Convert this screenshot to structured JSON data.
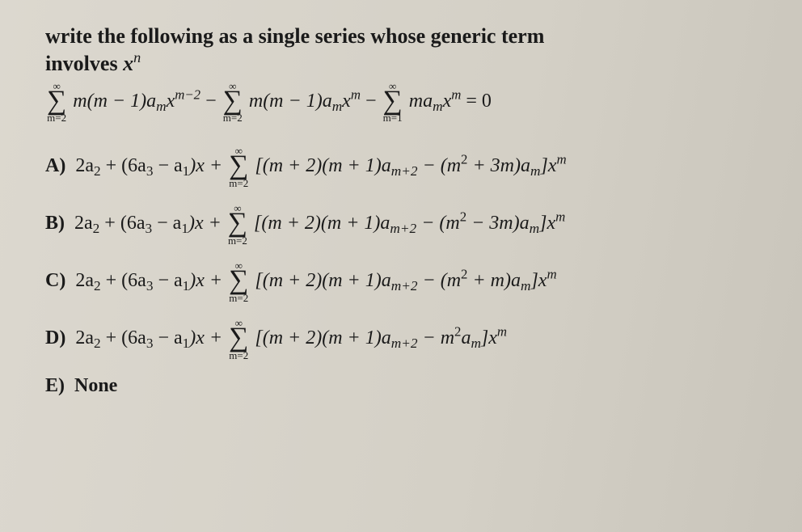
{
  "prompt": {
    "line1_a": "write the following as a single series whose generic term",
    "line2_a": "involves ",
    "line2_var": "x",
    "line2_exp": "n"
  },
  "equation": {
    "sum1": {
      "top": "∞",
      "bot": "m=2"
    },
    "term1a": "m(m − 1)a",
    "term1b": "x",
    "sum2": {
      "top": "∞",
      "bot": "m=2"
    },
    "term2a": "m(m − 1)a",
    "term2b": "x",
    "sum3": {
      "top": "∞",
      "bot": "m=1"
    },
    "term3a": "ma",
    "term3b": "x",
    "rhs": " = 0"
  },
  "choices": {
    "A": {
      "letter": "A)",
      "lead_a": "2a",
      "lead_b": " + (6a",
      "lead_c": " − a",
      "lead_d": ")x + ",
      "sum": {
        "top": "∞",
        "bot": "m=2"
      },
      "body_a": "[(m + 2)(m + 1)a",
      "body_b": " − (m",
      "body_c": " + 3m)a",
      "body_d": "]x"
    },
    "B": {
      "letter": "B)",
      "lead_a": "2a",
      "lead_b": " + (6a",
      "lead_c": " − a",
      "lead_d": ")x + ",
      "sum": {
        "top": "∞",
        "bot": "m=2"
      },
      "body_a": "[(m + 2)(m + 1)a",
      "body_b": " − (m",
      "body_c": " − 3m)a",
      "body_d": "]x"
    },
    "C": {
      "letter": "C)",
      "lead_a": "2a",
      "lead_b": " + (6a",
      "lead_c": " − a",
      "lead_d": ")x + ",
      "sum": {
        "top": "∞",
        "bot": "m=2"
      },
      "body_a": "[(m + 2)(m + 1)a",
      "body_b": " − (m",
      "body_c": " + m)a",
      "body_d": "]x"
    },
    "D": {
      "letter": "D)",
      "lead_a": "2a",
      "lead_b": " + (6a",
      "lead_c": " − a",
      "lead_d": ")x + ",
      "sum": {
        "top": "∞",
        "bot": "m=2"
      },
      "body_a": "[(m + 2)(m + 1)a",
      "body_b": " − m",
      "body_c": "a",
      "body_d": "]x"
    },
    "E": {
      "letter": "E)",
      "text": "None"
    }
  }
}
